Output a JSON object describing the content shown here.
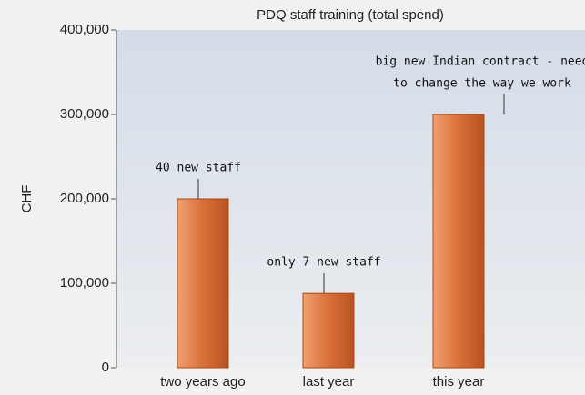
{
  "chart_data": {
    "type": "bar",
    "title": "PDQ staff training (total spend)",
    "y_label": "CHF",
    "categories": [
      "two years ago",
      "last year",
      "this year"
    ],
    "values": [
      200000,
      88000,
      300000
    ],
    "color": "#d9703a",
    "ylim": [
      0,
      400000
    ],
    "yticks": [
      0,
      {
        "value": 100000,
        "label": "100,000"
      },
      {
        "value": 200000,
        "label": "200,000"
      },
      {
        "value": 300000,
        "label": "300,000"
      },
      {
        "value": 400000,
        "label": "400,000"
      }
    ],
    "annotations": [
      {
        "lines": [
          "40 new staff"
        ]
      },
      {
        "lines": [
          "only 7 new staff"
        ]
      },
      {
        "lines": [
          "big new Indian contract - need",
          "to change the way we work"
        ]
      }
    ]
  }
}
